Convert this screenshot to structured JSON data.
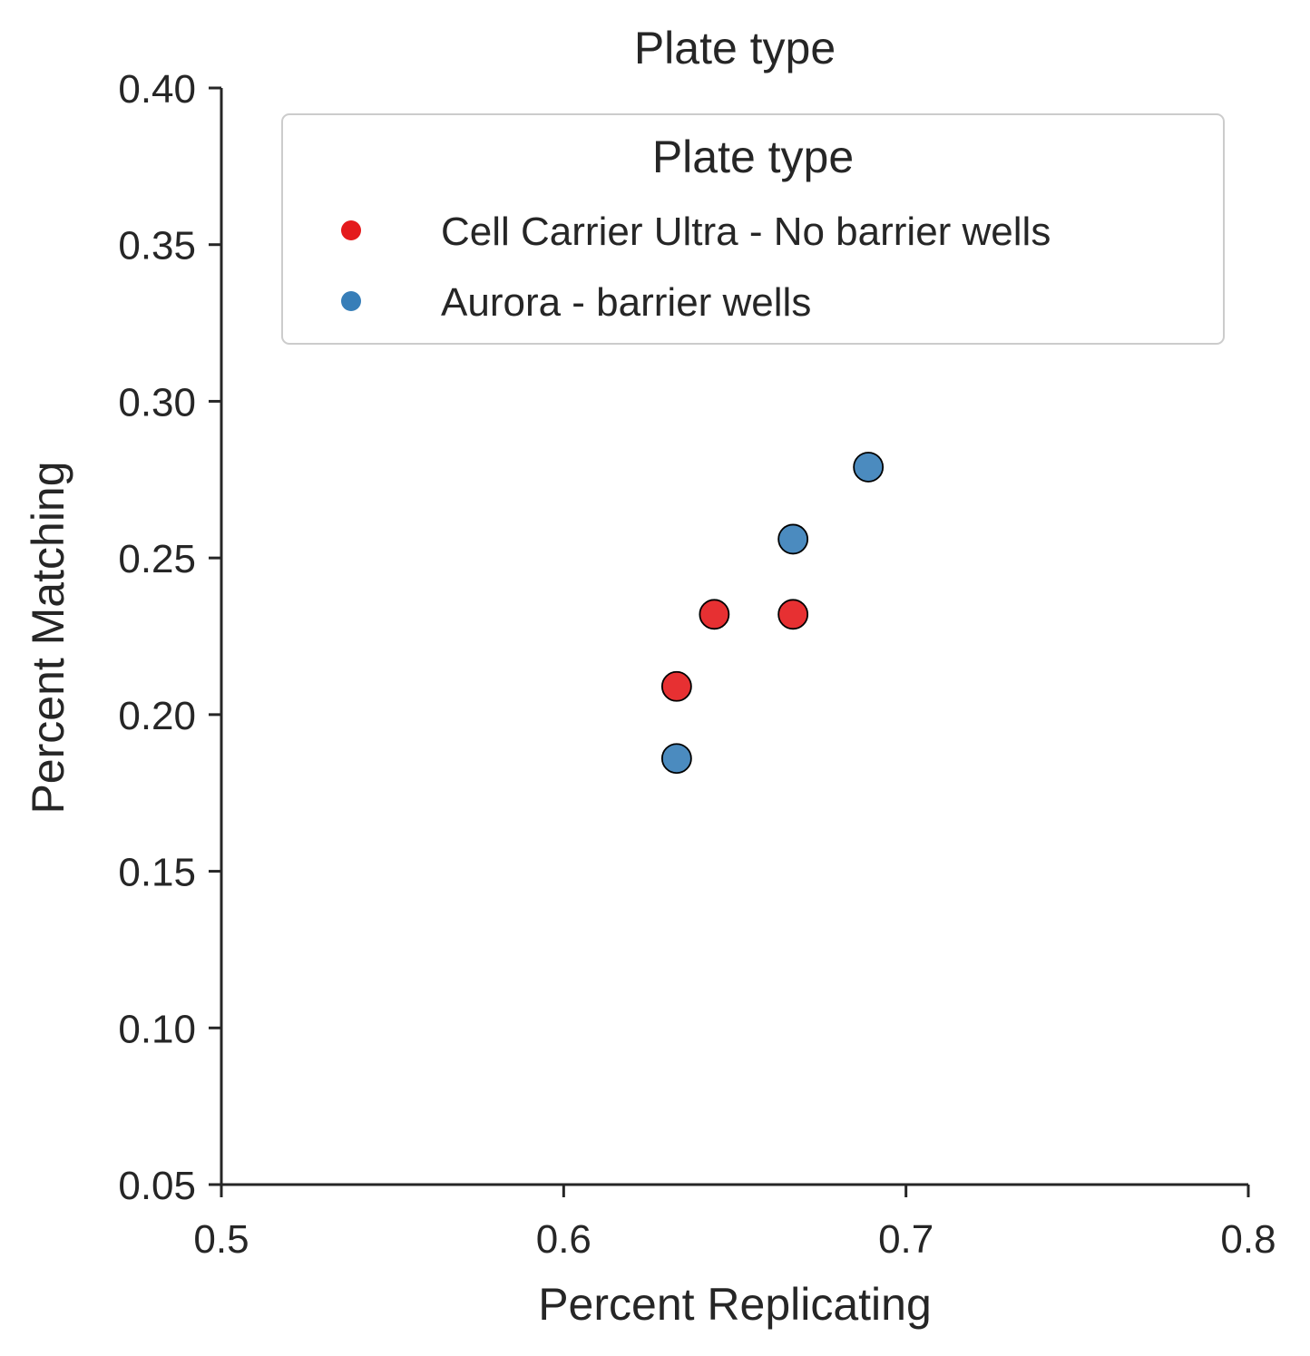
{
  "chart_data": {
    "type": "scatter",
    "title": "Plate type",
    "xlabel": "Percent Replicating",
    "ylabel": "Percent Matching",
    "xlim": [
      0.5,
      0.8
    ],
    "ylim": [
      0.05,
      0.4
    ],
    "xticks": [
      "0.5",
      "0.6",
      "0.7",
      "0.8"
    ],
    "yticks": [
      "0.05",
      "0.10",
      "0.15",
      "0.20",
      "0.25",
      "0.30",
      "0.35",
      "0.40"
    ],
    "grid": false,
    "legend": {
      "title": "Plate type",
      "placement": "top-right"
    },
    "series": [
      {
        "name": "Cell Carrier Ultra - No barrier wells",
        "color": "#e41a1c",
        "points": [
          {
            "x": 0.644,
            "y": 0.232
          },
          {
            "x": 0.667,
            "y": 0.232
          },
          {
            "x": 0.633,
            "y": 0.209
          }
        ]
      },
      {
        "name": "Aurora - barrier wells",
        "color": "#377eb8",
        "points": [
          {
            "x": 0.689,
            "y": 0.279
          },
          {
            "x": 0.667,
            "y": 0.256
          },
          {
            "x": 0.633,
            "y": 0.186
          }
        ]
      }
    ]
  }
}
